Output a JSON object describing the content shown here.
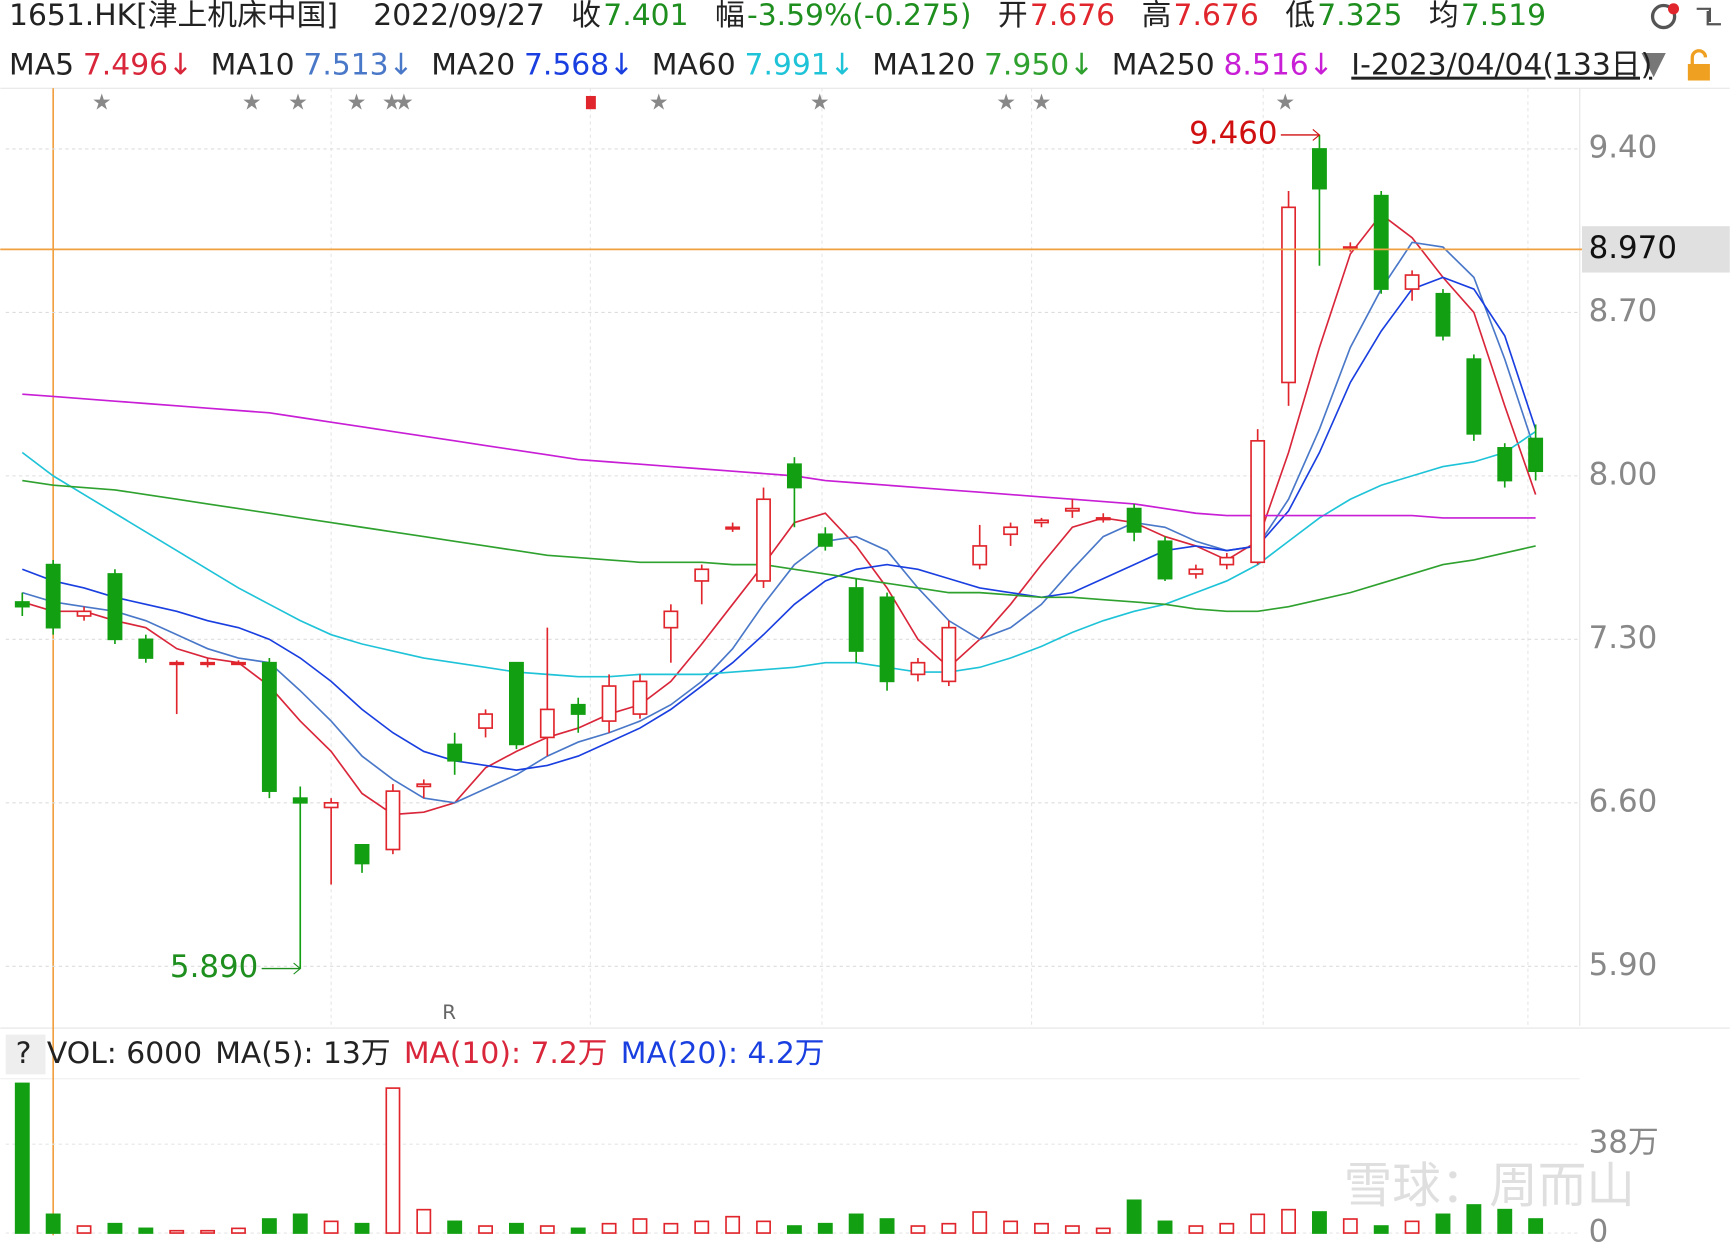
{
  "header": {
    "code": "1651.HK[津上机床中国]",
    "date": "2022/09/27",
    "fields": [
      {
        "name": "收",
        "value": "7.401",
        "color": "#1e8f1e"
      },
      {
        "name": "幅",
        "value": "-3.59%(-0.275)",
        "color": "#1e8f1e"
      },
      {
        "name": "开",
        "value": "7.676",
        "color": "#e0262c"
      },
      {
        "name": "高",
        "value": "7.676",
        "color": "#e0262c"
      },
      {
        "name": "低",
        "value": "7.325",
        "color": "#1e8f1e"
      },
      {
        "name": "均",
        "value": "7.519",
        "color": "#1e8f1e"
      }
    ],
    "range_label": "I-2023/04/04(133日)"
  },
  "watermark": "雪球：周而山",
  "chart_data": {
    "type": "candlestick",
    "ylim": [
      5.645,
      9.66
    ],
    "yticks": [
      {
        "value": 9.4,
        "label": "9.40"
      },
      {
        "value": 8.7,
        "label": "8.70"
      },
      {
        "value": 8,
        "label": "8.00"
      },
      {
        "value": 7.3,
        "label": "7.30"
      },
      {
        "value": 6.6,
        "label": "6.60"
      },
      {
        "value": 5.9,
        "label": "5.90"
      }
    ],
    "grid": true,
    "up_color": "#e0262c",
    "down_color": "#12a012",
    "candles": {
      "open": [
        7.46,
        7.62,
        7.4,
        7.58,
        7.3,
        7.2,
        7.2,
        7.2,
        7.2,
        6.62,
        6.58,
        6.42,
        6.4,
        6.67,
        6.85,
        6.92,
        7.2,
        6.88,
        7.02,
        6.95,
        6.98,
        7.35,
        7.55,
        7.78,
        7.55,
        8.05,
        7.75,
        7.52,
        7.48,
        7.15,
        7.12,
        7.62,
        7.75,
        7.8,
        7.85,
        7.82,
        7.86,
        7.72,
        7.58,
        7.62,
        7.63,
        8.4,
        9.4,
        8.98,
        9.2,
        8.8,
        8.78,
        8.5,
        8.12,
        8.16
      ],
      "high": [
        7.5,
        7.64,
        7.44,
        7.6,
        7.32,
        7.21,
        7.22,
        7.21,
        7.22,
        6.67,
        6.62,
        6.42,
        6.68,
        6.7,
        6.9,
        7.0,
        7.2,
        7.35,
        7.05,
        7.15,
        7.15,
        7.45,
        7.62,
        7.8,
        7.95,
        8.08,
        7.78,
        7.56,
        7.5,
        7.22,
        7.38,
        7.79,
        7.8,
        7.82,
        7.9,
        7.84,
        7.88,
        7.74,
        7.62,
        7.67,
        8.2,
        9.22,
        9.46,
        9.0,
        9.22,
        8.88,
        8.8,
        8.52,
        8.14,
        8.22
      ],
      "low": [
        7.4,
        7.32,
        7.38,
        7.28,
        7.2,
        6.98,
        7.18,
        7.19,
        6.62,
        5.89,
        6.25,
        6.3,
        6.38,
        6.62,
        6.72,
        6.88,
        6.83,
        6.8,
        6.9,
        6.9,
        6.96,
        7.2,
        7.45,
        7.76,
        7.52,
        7.78,
        7.68,
        7.2,
        7.08,
        7.12,
        7.1,
        7.6,
        7.7,
        7.78,
        7.82,
        7.8,
        7.72,
        7.55,
        7.56,
        7.6,
        7.62,
        8.3,
        8.9,
        8.96,
        8.78,
        8.75,
        8.58,
        8.15,
        7.95,
        7.98
      ],
      "close": [
        7.44,
        7.35,
        7.42,
        7.3,
        7.22,
        7.2,
        7.2,
        7.2,
        6.65,
        6.6,
        6.6,
        6.34,
        6.65,
        6.68,
        6.78,
        6.98,
        6.85,
        7.0,
        6.98,
        7.1,
        7.12,
        7.42,
        7.6,
        7.78,
        7.9,
        7.95,
        7.7,
        7.25,
        7.12,
        7.2,
        7.35,
        7.7,
        7.78,
        7.81,
        7.86,
        7.82,
        7.76,
        7.56,
        7.6,
        7.65,
        8.15,
        9.15,
        9.23,
        8.98,
        8.8,
        8.86,
        8.6,
        8.18,
        7.98,
        8.02
      ]
    },
    "series": [
      {
        "name": "MA5",
        "label": "7.496↓",
        "color": "#d9263a",
        "values": [
          7.46,
          7.42,
          7.42,
          7.38,
          7.35,
          7.26,
          7.22,
          7.2,
          7.1,
          6.95,
          6.82,
          6.64,
          6.55,
          6.56,
          6.6,
          6.75,
          6.82,
          6.88,
          6.92,
          6.98,
          7.02,
          7.12,
          7.28,
          7.45,
          7.62,
          7.8,
          7.84,
          7.7,
          7.52,
          7.3,
          7.18,
          7.3,
          7.45,
          7.62,
          7.78,
          7.82,
          7.8,
          7.74,
          7.7,
          7.64,
          7.72,
          8.1,
          8.55,
          8.95,
          9.12,
          9.02,
          8.85,
          8.7,
          8.3,
          7.92
        ]
      },
      {
        "name": "MA10",
        "label": "7.513↓",
        "color": "#4a78c8",
        "values": [
          7.5,
          7.46,
          7.44,
          7.42,
          7.38,
          7.32,
          7.26,
          7.22,
          7.2,
          7.08,
          6.95,
          6.8,
          6.7,
          6.62,
          6.6,
          6.66,
          6.72,
          6.8,
          6.86,
          6.9,
          6.95,
          7.02,
          7.12,
          7.26,
          7.45,
          7.62,
          7.72,
          7.74,
          7.68,
          7.52,
          7.38,
          7.3,
          7.35,
          7.45,
          7.6,
          7.74,
          7.8,
          7.78,
          7.72,
          7.68,
          7.7,
          7.9,
          8.2,
          8.55,
          8.8,
          9.0,
          8.98,
          8.85,
          8.5,
          8.1
        ]
      },
      {
        "name": "MA20",
        "label": "7.568↓",
        "color": "#1a3fe0",
        "values": [
          7.6,
          7.55,
          7.52,
          7.48,
          7.45,
          7.42,
          7.38,
          7.35,
          7.3,
          7.22,
          7.12,
          7.0,
          6.9,
          6.82,
          6.78,
          6.76,
          6.74,
          6.76,
          6.8,
          6.86,
          6.92,
          7.0,
          7.1,
          7.2,
          7.32,
          7.45,
          7.55,
          7.6,
          7.62,
          7.6,
          7.56,
          7.52,
          7.5,
          7.48,
          7.5,
          7.56,
          7.62,
          7.68,
          7.7,
          7.68,
          7.7,
          7.85,
          8.1,
          8.4,
          8.62,
          8.8,
          8.85,
          8.8,
          8.6,
          8.2
        ]
      },
      {
        "name": "MA60",
        "label": "7.991↓",
        "color": "#1fc3d8",
        "values": [
          8.1,
          8.0,
          7.92,
          7.84,
          7.76,
          7.68,
          7.6,
          7.52,
          7.45,
          7.38,
          7.32,
          7.28,
          7.25,
          7.22,
          7.2,
          7.18,
          7.16,
          7.15,
          7.14,
          7.14,
          7.15,
          7.15,
          7.15,
          7.16,
          7.17,
          7.18,
          7.2,
          7.2,
          7.18,
          7.16,
          7.16,
          7.18,
          7.22,
          7.27,
          7.33,
          7.38,
          7.42,
          7.45,
          7.5,
          7.55,
          7.62,
          7.72,
          7.82,
          7.9,
          7.96,
          8.0,
          8.04,
          8.06,
          8.1,
          8.19
        ]
      },
      {
        "name": "MA120",
        "label": "7.950↓",
        "color": "#2fa12f",
        "values": [
          7.98,
          7.96,
          7.95,
          7.94,
          7.92,
          7.9,
          7.88,
          7.86,
          7.84,
          7.82,
          7.8,
          7.78,
          7.76,
          7.74,
          7.72,
          7.7,
          7.68,
          7.66,
          7.65,
          7.64,
          7.63,
          7.63,
          7.63,
          7.62,
          7.62,
          7.6,
          7.58,
          7.56,
          7.54,
          7.52,
          7.5,
          7.5,
          7.49,
          7.48,
          7.48,
          7.47,
          7.46,
          7.45,
          7.43,
          7.42,
          7.42,
          7.44,
          7.47,
          7.5,
          7.54,
          7.58,
          7.62,
          7.64,
          7.67,
          7.7
        ]
      },
      {
        "name": "MA250",
        "label": "8.516↓",
        "color": "#c81ed6",
        "values": [
          8.35,
          8.34,
          8.33,
          8.32,
          8.31,
          8.3,
          8.29,
          8.28,
          8.27,
          8.25,
          8.23,
          8.21,
          8.19,
          8.17,
          8.15,
          8.13,
          8.11,
          8.09,
          8.07,
          8.06,
          8.05,
          8.04,
          8.03,
          8.02,
          8.01,
          8.0,
          7.98,
          7.97,
          7.96,
          7.95,
          7.94,
          7.93,
          7.92,
          7.91,
          7.9,
          7.89,
          7.88,
          7.86,
          7.84,
          7.83,
          7.83,
          7.83,
          7.83,
          7.83,
          7.83,
          7.83,
          7.82,
          7.82,
          7.82,
          7.82
        ]
      }
    ],
    "crosshair": {
      "value": 8.97,
      "label": "8.970"
    },
    "annotations": [
      {
        "text": "9.460",
        "value": 9.46,
        "color": "#d01010"
      },
      {
        "text": "5.890",
        "value": 5.89,
        "color": "#1e8f1e"
      }
    ],
    "marker": "R",
    "volume": {
      "ylim": [
        -1,
        66
      ],
      "yticks": [
        {
          "value": 38,
          "label": "38万"
        },
        0
      ],
      "legend": [
        {
          "text": "?",
          "color": "#222"
        },
        {
          "text": "VOL: 6000",
          "color": "#222"
        },
        {
          "text": "MA(5): 13万",
          "color": "#222"
        },
        {
          "text": "MA(10): 7.2万",
          "color": "#d9263a"
        },
        {
          "text": "MA(20): 4.2万",
          "color": "#1a3fe0"
        }
      ],
      "values": [
        64,
        8,
        3,
        4,
        2,
        1,
        1,
        2,
        6,
        8,
        5,
        4,
        62,
        10,
        5,
        3,
        4,
        3,
        2,
        4,
        6,
        4,
        5,
        7,
        5,
        3,
        4,
        8,
        6,
        3,
        4,
        9,
        5,
        4,
        3,
        2,
        14,
        5,
        3,
        4,
        8,
        10,
        9,
        6,
        3,
        5,
        8,
        12,
        10,
        6
      ]
    }
  }
}
